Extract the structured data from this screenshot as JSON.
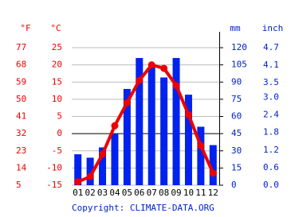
{
  "chart_data": {
    "type": "climate",
    "axis_labels": {
      "fahrenheit": "°F",
      "celsius": "°C",
      "mm": "mm",
      "inch": "inch"
    },
    "categories": [
      "01",
      "02",
      "03",
      "04",
      "05",
      "06",
      "07",
      "08",
      "09",
      "10",
      "11",
      "12"
    ],
    "series": [
      {
        "type": "bar",
        "axis": "y2",
        "color": "#0022ee",
        "values": [
          27,
          24,
          33,
          45,
          84,
          111,
          103,
          94,
          111,
          79,
          51,
          35
        ]
      },
      {
        "type": "line",
        "axis": "y",
        "color": "#ee0000",
        "values": [
          -14,
          -12.5,
          -6,
          2.3,
          9,
          15.5,
          20,
          19,
          14,
          5.5,
          -3.5,
          -11.5
        ]
      }
    ],
    "ylim": [
      -15,
      25
    ],
    "yticks": [
      -15,
      -10,
      -5,
      0,
      5,
      10,
      15,
      20,
      25
    ],
    "y3lim": [
      5,
      77
    ],
    "y3ticks": [
      5,
      14,
      23,
      32,
      41,
      50,
      59,
      68,
      77
    ],
    "y2lim": [
      0,
      120
    ],
    "y2ticks": [
      0,
      15,
      30,
      45,
      60,
      75,
      90,
      105,
      120
    ],
    "y4lim": [
      0,
      4.7
    ],
    "y4ticks": [
      {
        "value": 0,
        "label": "0.0"
      },
      0.6,
      1.2,
      1.8,
      2.4,
      {
        "value": 3,
        "label": "3.0"
      },
      3.5,
      4.1,
      4.7
    ],
    "grid": true,
    "copyright": "Copyright: CLIMATE-DATA.ORG"
  }
}
